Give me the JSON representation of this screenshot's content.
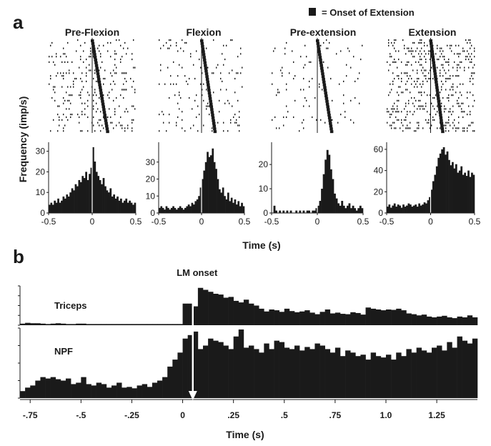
{
  "panel_a_label": "a",
  "panel_b_label": "b",
  "legend": {
    "marker": "■",
    "text": "= Onset of Extension"
  },
  "chart_data": [
    {
      "type": "bar",
      "panel": "a",
      "title": "Pre-Flexion",
      "ylabel": "Frequency (imp/s)",
      "xlabel": "Time (s)",
      "xlim": [
        -0.5,
        0.5
      ],
      "ylim": [
        0,
        33
      ],
      "xticks": [
        -0.5,
        0,
        0.5
      ],
      "xtick_labels": [
        "-0.5",
        "0",
        "0.5"
      ],
      "yticks": [
        0,
        10,
        20,
        30
      ],
      "ytick_labels": [
        "0",
        "10",
        "20",
        "30"
      ],
      "x": [
        -0.49,
        -0.47,
        -0.45,
        -0.43,
        -0.41,
        -0.39,
        -0.37,
        -0.35,
        -0.33,
        -0.31,
        -0.29,
        -0.27,
        -0.25,
        -0.23,
        -0.21,
        -0.19,
        -0.17,
        -0.15,
        -0.13,
        -0.11,
        -0.09,
        -0.07,
        -0.05,
        -0.03,
        -0.01,
        0.01,
        0.03,
        0.05,
        0.07,
        0.09,
        0.11,
        0.13,
        0.15,
        0.17,
        0.19,
        0.21,
        0.23,
        0.25,
        0.27,
        0.29,
        0.31,
        0.33,
        0.35,
        0.37,
        0.39,
        0.41,
        0.43,
        0.45,
        0.47,
        0.49
      ],
      "values": [
        4,
        5,
        4,
        6,
        5,
        7,
        5,
        6,
        8,
        7,
        9,
        8,
        10,
        12,
        11,
        14,
        13,
        16,
        15,
        18,
        17,
        20,
        16,
        19,
        22,
        32,
        25,
        20,
        18,
        16,
        14,
        17,
        13,
        11,
        10,
        12,
        8,
        9,
        7,
        8,
        6,
        7,
        5,
        6,
        7,
        5,
        6,
        5,
        4,
        5
      ]
    },
    {
      "type": "bar",
      "panel": "a",
      "title": "Flexion",
      "xlim": [
        -0.5,
        0.5
      ],
      "ylim": [
        0,
        40
      ],
      "xticks": [
        -0.5,
        0,
        0.5
      ],
      "xtick_labels": [
        "-0.5",
        "0",
        "0.5"
      ],
      "yticks": [
        0,
        10,
        20,
        30
      ],
      "ytick_labels": [
        "0",
        "10",
        "20",
        "30"
      ],
      "x": [
        -0.49,
        -0.47,
        -0.45,
        -0.43,
        -0.41,
        -0.39,
        -0.37,
        -0.35,
        -0.33,
        -0.31,
        -0.29,
        -0.27,
        -0.25,
        -0.23,
        -0.21,
        -0.19,
        -0.17,
        -0.15,
        -0.13,
        -0.11,
        -0.09,
        -0.07,
        -0.05,
        -0.03,
        -0.01,
        0.01,
        0.03,
        0.05,
        0.07,
        0.09,
        0.11,
        0.13,
        0.15,
        0.17,
        0.19,
        0.21,
        0.23,
        0.25,
        0.27,
        0.29,
        0.31,
        0.33,
        0.35,
        0.37,
        0.39,
        0.41,
        0.43,
        0.45,
        0.47,
        0.49
      ],
      "values": [
        3,
        4,
        3,
        2,
        4,
        3,
        2,
        3,
        4,
        3,
        2,
        3,
        4,
        3,
        2,
        3,
        4,
        5,
        4,
        6,
        5,
        7,
        8,
        10,
        15,
        20,
        25,
        30,
        36,
        33,
        34,
        38,
        30,
        26,
        20,
        14,
        12,
        15,
        10,
        8,
        12,
        7,
        9,
        6,
        8,
        5,
        7,
        4,
        6,
        4
      ]
    },
    {
      "type": "bar",
      "panel": "a",
      "title": "Pre-extension",
      "xlim": [
        -0.5,
        0.5
      ],
      "ylim": [
        0,
        28
      ],
      "xticks": [
        -0.5,
        0,
        0.5
      ],
      "xtick_labels": [
        "-0.5",
        "0",
        "0.5"
      ],
      "yticks": [
        0,
        10,
        20
      ],
      "ytick_labels": [
        "0",
        "10",
        "20"
      ],
      "x": [
        -0.49,
        -0.47,
        -0.45,
        -0.43,
        -0.41,
        -0.39,
        -0.37,
        -0.35,
        -0.33,
        -0.31,
        -0.29,
        -0.27,
        -0.25,
        -0.23,
        -0.21,
        -0.19,
        -0.17,
        -0.15,
        -0.13,
        -0.11,
        -0.09,
        -0.07,
        -0.05,
        -0.03,
        -0.01,
        0.01,
        0.03,
        0.05,
        0.07,
        0.09,
        0.11,
        0.13,
        0.15,
        0.17,
        0.19,
        0.21,
        0.23,
        0.25,
        0.27,
        0.29,
        0.31,
        0.33,
        0.35,
        0.37,
        0.39,
        0.41,
        0.43,
        0.45,
        0.47,
        0.49
      ],
      "values": [
        0,
        3,
        1,
        0,
        1,
        0,
        1,
        0,
        1,
        0,
        1,
        0,
        0,
        1,
        0,
        1,
        0,
        1,
        0,
        1,
        1,
        0,
        1,
        1,
        2,
        3,
        5,
        10,
        16,
        22,
        26,
        24,
        18,
        14,
        8,
        6,
        4,
        3,
        5,
        3,
        2,
        3,
        4,
        2,
        3,
        2,
        1,
        2,
        3,
        2
      ]
    },
    {
      "type": "bar",
      "panel": "a",
      "title": "Extension",
      "xlim": [
        -0.5,
        0.5
      ],
      "ylim": [
        0,
        64
      ],
      "xticks": [
        -0.5,
        0,
        0.5
      ],
      "xtick_labels": [
        "-0.5",
        "0",
        "0.5"
      ],
      "yticks": [
        0,
        20,
        40,
        60
      ],
      "ytick_labels": [
        "0",
        "20",
        "40",
        "60"
      ],
      "x": [
        -0.49,
        -0.47,
        -0.45,
        -0.43,
        -0.41,
        -0.39,
        -0.37,
        -0.35,
        -0.33,
        -0.31,
        -0.29,
        -0.27,
        -0.25,
        -0.23,
        -0.21,
        -0.19,
        -0.17,
        -0.15,
        -0.13,
        -0.11,
        -0.09,
        -0.07,
        -0.05,
        -0.03,
        -0.01,
        0.01,
        0.03,
        0.05,
        0.07,
        0.09,
        0.11,
        0.13,
        0.15,
        0.17,
        0.19,
        0.21,
        0.23,
        0.25,
        0.27,
        0.29,
        0.31,
        0.33,
        0.35,
        0.37,
        0.39,
        0.41,
        0.43,
        0.45,
        0.47,
        0.49
      ],
      "values": [
        6,
        8,
        5,
        7,
        9,
        6,
        8,
        7,
        5,
        8,
        6,
        7,
        9,
        8,
        6,
        7,
        8,
        6,
        9,
        7,
        8,
        10,
        9,
        12,
        15,
        22,
        30,
        36,
        44,
        52,
        56,
        60,
        62,
        55,
        58,
        50,
        45,
        48,
        42,
        46,
        38,
        40,
        44,
        36,
        38,
        35,
        40,
        34,
        38,
        36
      ]
    },
    {
      "type": "bar",
      "panel": "b",
      "title": "Triceps",
      "xlabel": "Time (s)",
      "annotation": "LM onset",
      "xlim": [
        -0.8,
        1.45
      ],
      "ylim": [
        0,
        1
      ],
      "x": [
        -0.8,
        -0.775,
        -0.75,
        -0.725,
        -0.7,
        -0.675,
        -0.65,
        -0.625,
        -0.6,
        -0.575,
        -0.55,
        -0.525,
        -0.5,
        -0.475,
        -0.45,
        -0.425,
        -0.4,
        -0.375,
        -0.35,
        -0.325,
        -0.3,
        -0.275,
        -0.25,
        -0.225,
        -0.2,
        -0.175,
        -0.15,
        -0.125,
        -0.1,
        -0.075,
        -0.05,
        -0.025,
        0.0,
        0.025,
        0.05,
        0.075,
        0.1,
        0.125,
        0.15,
        0.175,
        0.2,
        0.225,
        0.25,
        0.275,
        0.3,
        0.325,
        0.35,
        0.375,
        0.4,
        0.425,
        0.45,
        0.475,
        0.5,
        0.525,
        0.55,
        0.575,
        0.6,
        0.625,
        0.65,
        0.675,
        0.7,
        0.725,
        0.75,
        0.775,
        0.8,
        0.825,
        0.85,
        0.875,
        0.9,
        0.925,
        0.95,
        0.975,
        1.0,
        1.025,
        1.05,
        1.075,
        1.1,
        1.125,
        1.15,
        1.175,
        1.2,
        1.225,
        1.25,
        1.275,
        1.3,
        1.325,
        1.35,
        1.375,
        1.4,
        1.425
      ],
      "values": [
        0.04,
        0.06,
        0.05,
        0.05,
        0.04,
        0.03,
        0.04,
        0.05,
        0.04,
        0.03,
        0.03,
        0.04,
        0.04,
        0.03,
        0.03,
        0.03,
        0.03,
        0.03,
        0.03,
        0.03,
        0.03,
        0.03,
        0.03,
        0.03,
        0.03,
        0.03,
        0.03,
        0.03,
        0.03,
        0.03,
        0.03,
        0.03,
        0.55,
        0.55,
        0.48,
        0.95,
        0.9,
        0.85,
        0.8,
        0.78,
        0.7,
        0.72,
        0.62,
        0.58,
        0.65,
        0.55,
        0.5,
        0.42,
        0.35,
        0.4,
        0.38,
        0.34,
        0.42,
        0.36,
        0.33,
        0.35,
        0.38,
        0.32,
        0.28,
        0.34,
        0.4,
        0.3,
        0.32,
        0.29,
        0.28,
        0.33,
        0.31,
        0.27,
        0.45,
        0.42,
        0.4,
        0.38,
        0.4,
        0.39,
        0.42,
        0.38,
        0.3,
        0.28,
        0.25,
        0.27,
        0.22,
        0.2,
        0.22,
        0.24,
        0.2,
        0.18,
        0.22,
        0.2,
        0.25,
        0.2
      ]
    },
    {
      "type": "bar",
      "panel": "b",
      "title": "NPF",
      "xlim": [
        -0.8,
        1.45
      ],
      "ylim": [
        0,
        1
      ],
      "xticks": [
        -0.75,
        -0.5,
        -0.25,
        0,
        0.25,
        0.5,
        0.75,
        1.0,
        1.25
      ],
      "xtick_labels": [
        "-.75",
        "-.5",
        "-.25",
        "0",
        ".25",
        ".5",
        ".75",
        "1.0",
        "1.25"
      ],
      "x": [
        -0.8,
        -0.775,
        -0.75,
        -0.725,
        -0.7,
        -0.675,
        -0.65,
        -0.625,
        -0.6,
        -0.575,
        -0.55,
        -0.525,
        -0.5,
        -0.475,
        -0.45,
        -0.425,
        -0.4,
        -0.375,
        -0.35,
        -0.325,
        -0.3,
        -0.275,
        -0.25,
        -0.225,
        -0.2,
        -0.175,
        -0.15,
        -0.125,
        -0.1,
        -0.075,
        -0.05,
        -0.025,
        0.0,
        0.025,
        0.05,
        0.075,
        0.1,
        0.125,
        0.15,
        0.175,
        0.2,
        0.225,
        0.25,
        0.275,
        0.3,
        0.325,
        0.35,
        0.375,
        0.4,
        0.425,
        0.45,
        0.475,
        0.5,
        0.525,
        0.55,
        0.575,
        0.6,
        0.625,
        0.65,
        0.675,
        0.7,
        0.725,
        0.75,
        0.775,
        0.8,
        0.825,
        0.85,
        0.875,
        0.9,
        0.925,
        0.95,
        0.975,
        1.0,
        1.025,
        1.05,
        1.075,
        1.1,
        1.125,
        1.15,
        1.175,
        1.2,
        1.225,
        1.25,
        1.275,
        1.3,
        1.325,
        1.35,
        1.375,
        1.4,
        1.425
      ],
      "values": [
        0.1,
        0.15,
        0.18,
        0.25,
        0.3,
        0.28,
        0.3,
        0.27,
        0.25,
        0.28,
        0.2,
        0.22,
        0.3,
        0.2,
        0.18,
        0.22,
        0.2,
        0.15,
        0.18,
        0.22,
        0.15,
        0.16,
        0.14,
        0.18,
        0.2,
        0.16,
        0.22,
        0.25,
        0.3,
        0.45,
        0.55,
        0.65,
        0.85,
        0.9,
        0.95,
        0.7,
        0.75,
        0.85,
        0.82,
        0.8,
        0.75,
        0.7,
        0.88,
        0.98,
        0.72,
        0.75,
        0.7,
        0.65,
        0.78,
        0.7,
        0.82,
        0.8,
        0.72,
        0.7,
        0.75,
        0.68,
        0.73,
        0.7,
        0.78,
        0.75,
        0.7,
        0.65,
        0.72,
        0.6,
        0.68,
        0.65,
        0.6,
        0.62,
        0.55,
        0.65,
        0.6,
        0.58,
        0.62,
        0.55,
        0.65,
        0.6,
        0.7,
        0.65,
        0.72,
        0.68,
        0.65,
        0.72,
        0.75,
        0.68,
        0.8,
        0.72,
        0.88,
        0.82,
        0.78,
        0.85
      ]
    }
  ]
}
